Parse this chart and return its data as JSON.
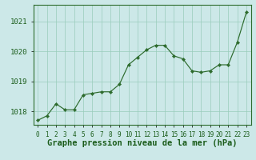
{
  "x": [
    0,
    1,
    2,
    3,
    4,
    5,
    6,
    7,
    8,
    9,
    10,
    11,
    12,
    13,
    14,
    15,
    16,
    17,
    18,
    19,
    20,
    21,
    22,
    23
  ],
  "y": [
    1017.7,
    1017.85,
    1018.25,
    1018.05,
    1018.05,
    1018.55,
    1018.6,
    1018.65,
    1018.65,
    1018.9,
    1019.55,
    1019.8,
    1020.05,
    1020.2,
    1020.2,
    1019.85,
    1019.75,
    1019.35,
    1019.3,
    1019.35,
    1019.55,
    1019.55,
    1020.3,
    1021.3
  ],
  "line_color": "#2d6b2d",
  "marker": "D",
  "marker_size": 2.2,
  "bg_color": "#cce8e8",
  "grid_color": "#99ccbb",
  "title": "Graphe pression niveau de la mer (hPa)",
  "title_color": "#1a5c1a",
  "title_fontsize": 7.5,
  "ylabel_ticks": [
    1018,
    1019,
    1020,
    1021
  ],
  "ylim": [
    1017.55,
    1021.55
  ],
  "xlim": [
    -0.5,
    23.5
  ],
  "xticks": [
    0,
    1,
    2,
    3,
    4,
    5,
    6,
    7,
    8,
    9,
    10,
    11,
    12,
    13,
    14,
    15,
    16,
    17,
    18,
    19,
    20,
    21,
    22,
    23
  ],
  "tick_fontsize": 5.5,
  "ytick_fontsize": 6.5,
  "tick_color": "#1a5c1a",
  "border_color": "#2d6b2d"
}
